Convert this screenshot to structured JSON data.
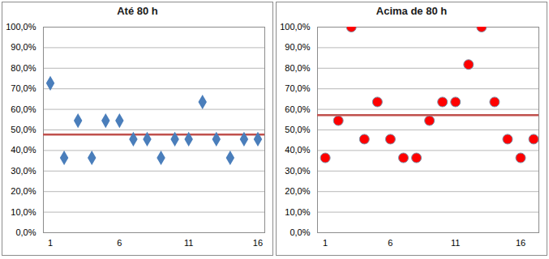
{
  "chart_data": [
    {
      "type": "scatter",
      "title": "Até 80 h",
      "x": [
        1,
        2,
        3,
        4,
        5,
        6,
        7,
        8,
        9,
        10,
        11,
        12,
        13,
        14,
        15,
        16
      ],
      "values": [
        72.7,
        36.4,
        54.5,
        36.4,
        54.5,
        54.5,
        45.5,
        45.5,
        36.4,
        45.5,
        45.5,
        63.6,
        45.5,
        36.4,
        45.5,
        45.5
      ],
      "color": "#4a7ebb",
      "marker": "diamond",
      "average_line": {
        "value": 47.7,
        "color": "#c0504d"
      },
      "xlim": [
        0.5,
        16.5
      ],
      "xticks": [
        1,
        6,
        11,
        16
      ],
      "ylim": [
        0,
        100
      ],
      "yticks": [
        {
          "value": 0,
          "label": "0,0%"
        },
        {
          "value": 10,
          "label": "10,0%"
        },
        {
          "value": 20,
          "label": "20,0%"
        },
        {
          "value": 30,
          "label": "30,0%"
        },
        {
          "value": 40,
          "label": "40,0%"
        },
        {
          "value": 50,
          "label": "50,0%"
        },
        {
          "value": 60,
          "label": "60,0%"
        },
        {
          "value": 70,
          "label": "70,0%"
        },
        {
          "value": 80,
          "label": "80,0%"
        },
        {
          "value": 90,
          "label": "90,0%"
        },
        {
          "value": 100,
          "label": "100,0%"
        }
      ],
      "grid": true
    },
    {
      "type": "scatter",
      "title": "Acima de 80 h",
      "x": [
        1,
        2,
        3,
        4,
        5,
        6,
        7,
        8,
        9,
        10,
        11,
        12,
        13,
        14,
        15,
        16,
        17
      ],
      "values": [
        36.4,
        54.5,
        100,
        45.5,
        63.6,
        45.5,
        36.4,
        36.4,
        54.5,
        63.6,
        63.6,
        81.8,
        100,
        63.6,
        45.5,
        36.4,
        45.5
      ],
      "color": "#ff0000",
      "marker": "circle",
      "average_line": {
        "value": 57.2,
        "color": "#c0504d"
      },
      "xlim": [
        0.4,
        17.4
      ],
      "xticks": [
        1,
        6,
        11,
        16
      ],
      "ylim": [
        0,
        100
      ],
      "yticks": [
        {
          "value": 0,
          "label": "0,0%"
        },
        {
          "value": 10,
          "label": "10,0%"
        },
        {
          "value": 20,
          "label": "20,0%"
        },
        {
          "value": 30,
          "label": "30,0%"
        },
        {
          "value": 40,
          "label": "40,0%"
        },
        {
          "value": 50,
          "label": "50,0%"
        },
        {
          "value": 60,
          "label": "60,0%"
        },
        {
          "value": 70,
          "label": "70,0%"
        },
        {
          "value": 80,
          "label": "80,0%"
        },
        {
          "value": 90,
          "label": "90,0%"
        },
        {
          "value": 100,
          "label": "100,0%"
        }
      ],
      "grid": true
    }
  ]
}
